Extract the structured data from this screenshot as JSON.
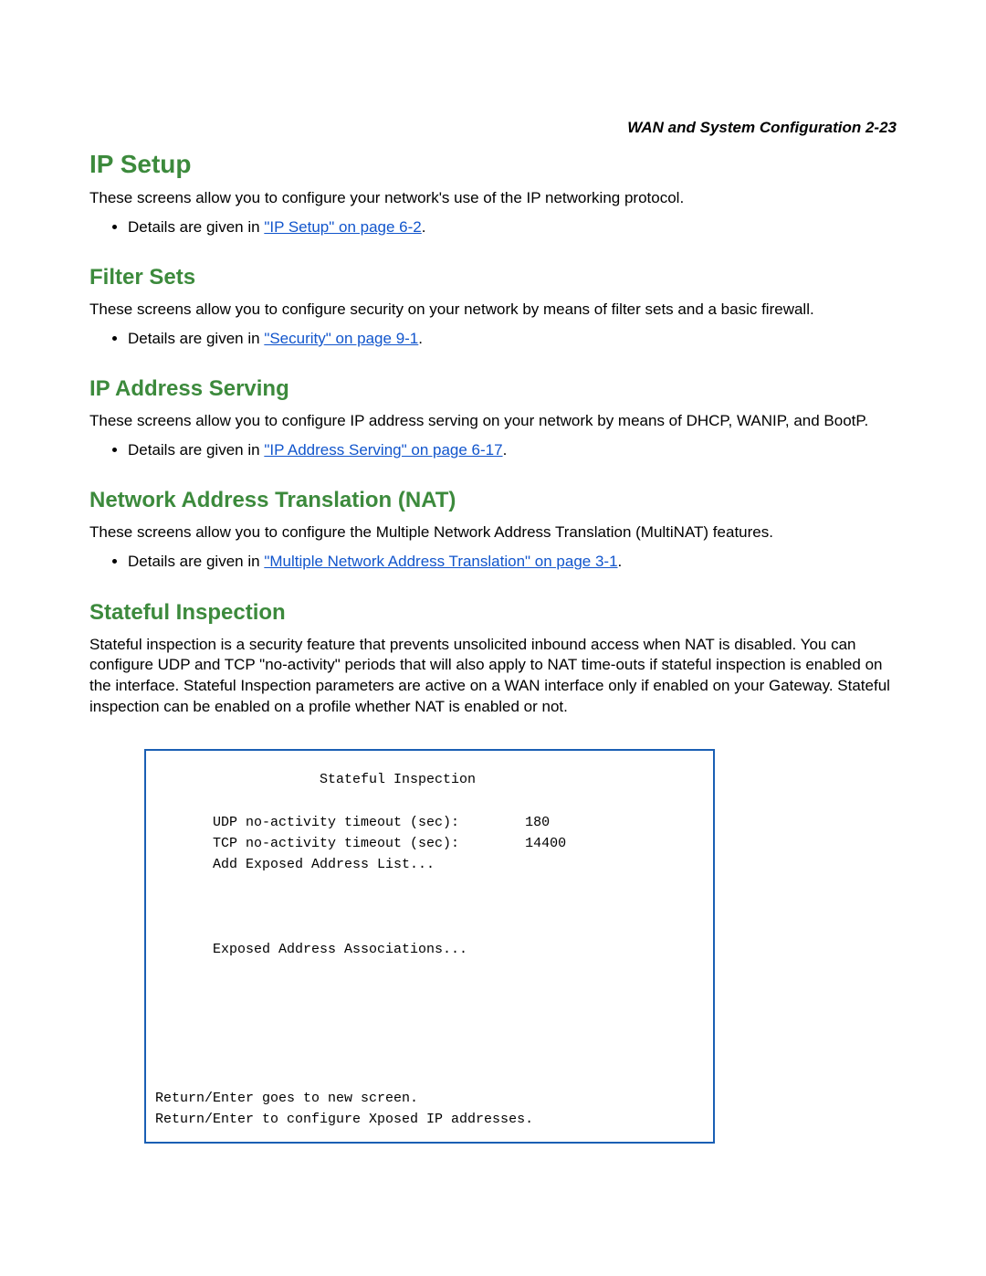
{
  "header": {
    "text": "WAN and System Configuration   2-23"
  },
  "sections": [
    {
      "key": "ip_setup",
      "title": "IP Setup",
      "headingClass": "h-large",
      "paragraph": "These screens allow you to configure your network's use of the IP networking protocol.",
      "bullet_prefix": "Details are given in ",
      "bullet_link": "\"IP Setup\" on page 6-2",
      "bullet_suffix": "."
    },
    {
      "key": "filter_sets",
      "title": "Filter Sets",
      "headingClass": "h-med",
      "paragraph": "These screens allow you to configure security on your network by means of filter sets and a basic firewall.",
      "bullet_prefix": "Details are given in ",
      "bullet_link": "\"Security\" on page 9-1",
      "bullet_suffix": "."
    },
    {
      "key": "ip_address_serving",
      "title": "IP Address Serving",
      "headingClass": "h-med",
      "paragraph": "These screens allow you to configure IP address serving on your network by means of DHCP, WANIP, and BootP.",
      "bullet_prefix": "Details are given in ",
      "bullet_link": "\"IP Address Serving\" on page 6-17",
      "bullet_suffix": "."
    },
    {
      "key": "nat",
      "title": "Network Address Translation (NAT)",
      "headingClass": "h-med",
      "paragraph": "These screens allow you to configure the Multiple Network Address Translation (MultiNAT) features.",
      "bullet_prefix": "Details are given in ",
      "bullet_link": "\"Multiple Network Address Translation\" on page 3-1",
      "bullet_suffix": "."
    }
  ],
  "stateful": {
    "title": "Stateful Inspection",
    "headingClass": "h-med",
    "paragraph": "Stateful inspection is a security feature that prevents unsolicited inbound access when NAT is disabled. You can configure UDP and TCP \"no-activity\" periods that will also apply to NAT time-outs if stateful inspection is enabled on the interface. Stateful Inspection parameters are active on a WAN interface only if enabled on your Gateway. Stateful inspection can be enabled on a profile whether NAT is enabled or not."
  },
  "terminal": {
    "title": "Stateful Inspection",
    "udp_label": "UDP no-activity timeout (sec):",
    "udp_value": "180",
    "tcp_label": "TCP no-activity timeout (sec):",
    "tcp_value": "14400",
    "add_exposed": "Add Exposed Address List...",
    "exposed_assoc": "Exposed Address Associations...",
    "footer1": "Return/Enter goes to new screen.",
    "footer2": "Return/Enter to configure Xposed IP addresses."
  },
  "colors": {
    "heading": "#3c8a3c",
    "link": "#1155cc",
    "terminal_border": "#1a5fb4",
    "text": "#000000",
    "background": "#ffffff"
  }
}
